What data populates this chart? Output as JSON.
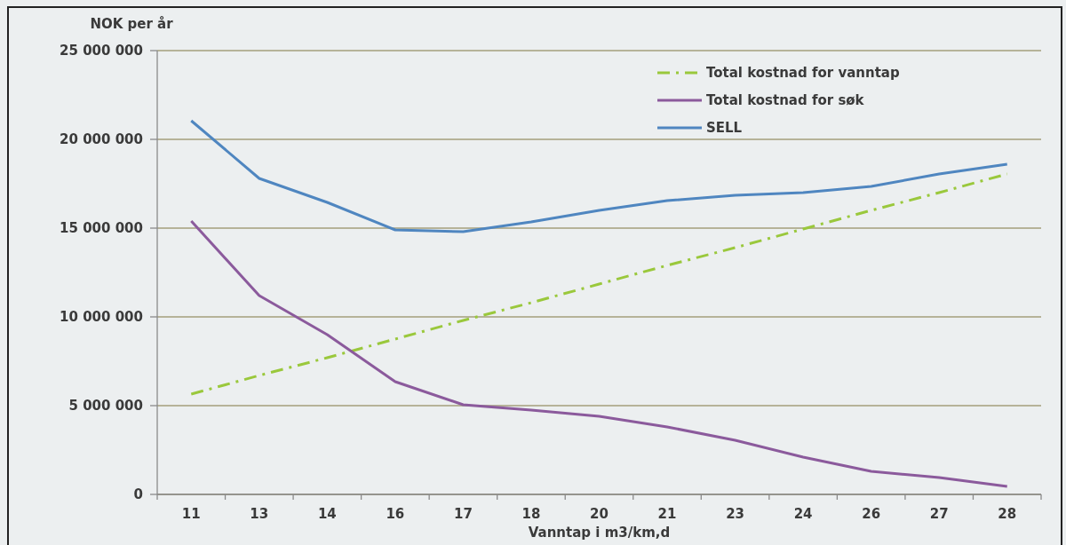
{
  "chart_data": {
    "type": "line",
    "ylabel": "NOK per år",
    "xlabel": "Vanntap i m3/km,d",
    "categories": [
      "11",
      "13",
      "14",
      "16",
      "17",
      "18",
      "20",
      "21",
      "23",
      "24",
      "26",
      "27",
      "28"
    ],
    "series": [
      {
        "name": "Total kostnad for vanntap",
        "color": "#9ac83c",
        "line_style": "dashdot",
        "values": [
          5650000,
          6700000,
          7700000,
          8750000,
          9800000,
          10800000,
          11850000,
          12900000,
          13900000,
          14950000,
          16000000,
          17000000,
          18050000
        ]
      },
      {
        "name": "Total kostnad for søk",
        "color": "#8b5a9c",
        "values": [
          15400000,
          11200000,
          9000000,
          6350000,
          5050000,
          4750000,
          4400000,
          3800000,
          3050000,
          2100000,
          1300000,
          950000,
          450000
        ]
      },
      {
        "name": "SELL",
        "color": "#4f86c0",
        "values": [
          21050000,
          17800000,
          16450000,
          14900000,
          14800000,
          15350000,
          16000000,
          16550000,
          16850000,
          17000000,
          17350000,
          18050000,
          18600000
        ]
      }
    ],
    "ylim": [
      0,
      25000000
    ],
    "yticks": [
      0,
      {
        "value": 5000000,
        "label": "5 000 000"
      },
      {
        "value": 10000000,
        "label": "10 000 000"
      },
      {
        "value": 15000000,
        "label": "15 000 000"
      },
      {
        "value": 20000000,
        "label": "20 000 000"
      },
      {
        "value": 25000000,
        "label": "25 000 000"
      }
    ],
    "grid": "y",
    "legend": "top right"
  }
}
